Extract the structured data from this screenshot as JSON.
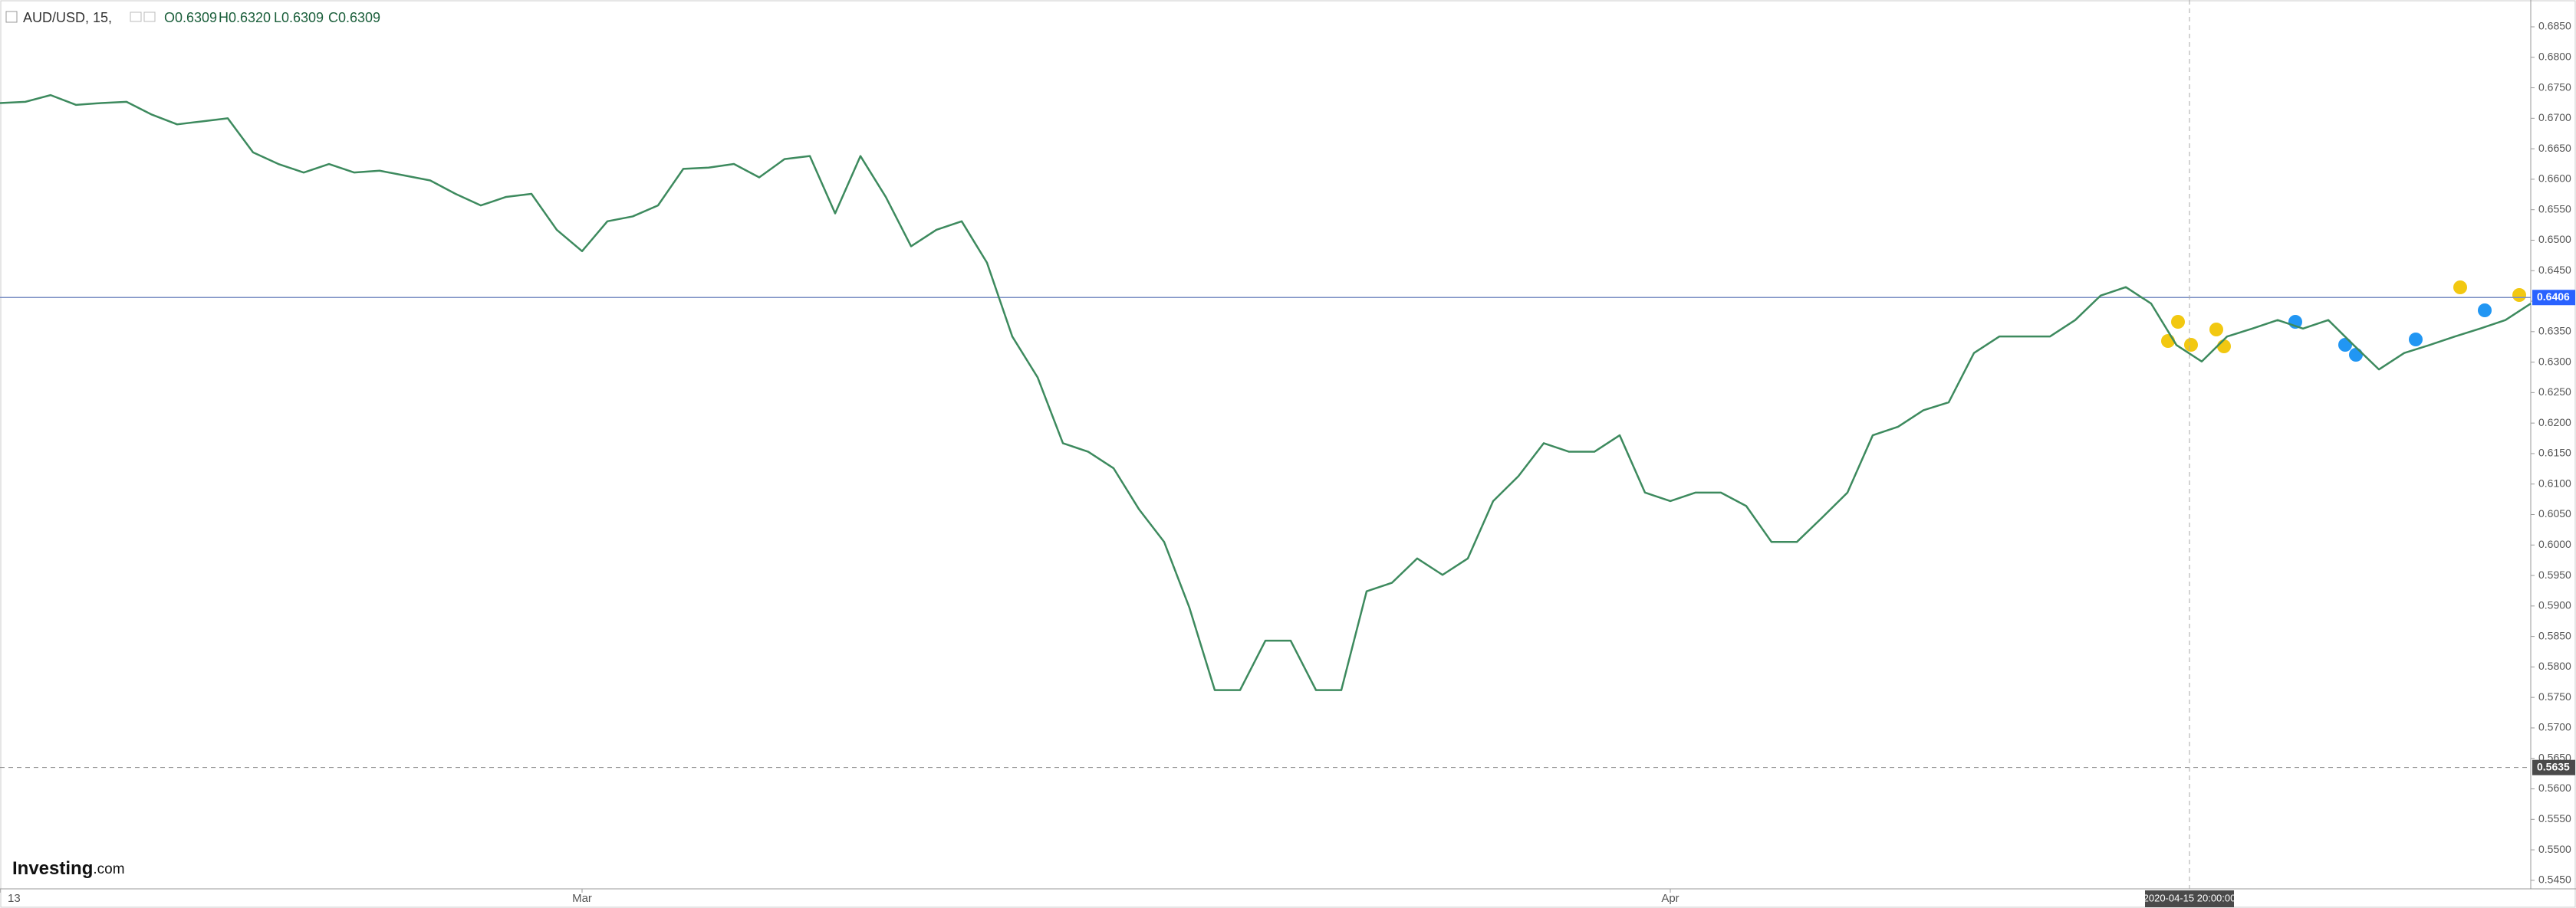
{
  "header": {
    "symbol": "AUD/USD, 15,",
    "open": "O0.6309",
    "high": "H0.6320",
    "low": "L0.6309",
    "close": "C0.6309"
  },
  "logo": {
    "name": "Investing",
    "suffix": ".com"
  },
  "chart_data": {
    "type": "line",
    "color": "#3d8a5e",
    "categories": [
      "13",
      null,
      null,
      null,
      null,
      null,
      null,
      null,
      null,
      null,
      null,
      null,
      null,
      null,
      null,
      null,
      null,
      null,
      null,
      null,
      null,
      null,
      null,
      "Mar",
      null,
      null,
      null,
      null,
      null,
      null,
      null,
      null,
      null,
      null,
      null,
      null,
      null,
      null,
      null,
      null,
      null,
      null,
      null,
      null,
      null,
      null,
      null,
      null,
      null,
      null,
      null,
      null,
      null,
      null,
      null,
      null,
      null,
      null,
      null,
      null,
      null,
      null,
      null,
      null,
      null,
      null,
      "Apr",
      null,
      null,
      null,
      null,
      null,
      null,
      null,
      null,
      null,
      null,
      null,
      null,
      null,
      null,
      null,
      null,
      null,
      null,
      null,
      null,
      null,
      null,
      null,
      null,
      null,
      null,
      null,
      null,
      null,
      null,
      null,
      null,
      null,
      null
    ],
    "values": [
      0.6725,
      0.6727,
      0.6738,
      0.6722,
      0.6725,
      0.6727,
      0.6706,
      0.669,
      0.6695,
      0.67,
      0.6644,
      0.6625,
      0.6611,
      0.6625,
      0.6611,
      0.6614,
      0.6606,
      0.6598,
      0.6576,
      0.6557,
      0.6571,
      0.6576,
      0.6517,
      0.6482,
      0.6531,
      0.6539,
      0.6557,
      0.6617,
      0.6619,
      0.6625,
      0.6603,
      0.6633,
      0.6638,
      0.6544,
      0.6638,
      0.6571,
      0.649,
      0.6517,
      0.6531,
      0.6463,
      0.6342,
      0.6275,
      0.6167,
      0.6153,
      0.6126,
      0.6059,
      0.6005,
      0.5897,
      0.5762,
      0.5762,
      0.5843,
      0.5843,
      0.5762,
      0.5762,
      0.5924,
      0.5938,
      0.5978,
      0.5951,
      0.5978,
      0.6072,
      0.6113,
      0.6167,
      0.6153,
      0.6153,
      0.618,
      0.6086,
      0.6072,
      0.6086,
      0.6086,
      0.6064,
      0.6005,
      0.6005,
      0.6045,
      0.6086,
      0.618,
      0.6194,
      0.6221,
      0.6234,
      0.6315,
      0.6342,
      0.6342,
      0.6342,
      0.6369,
      0.6409,
      0.6423,
      0.6396,
      0.6328,
      0.6301,
      0.6342,
      0.6355,
      0.6369,
      0.6355,
      0.6369,
      0.6328,
      0.6288,
      0.6315,
      0.6328,
      0.6342,
      0.6355,
      0.6369,
      0.6396
    ],
    "ylim": [
      0.5436,
      0.6894
    ],
    "yticks": [
      {
        "value": 0.545,
        "label": "0.5450"
      },
      {
        "value": 0.55,
        "label": "0.5500"
      },
      {
        "value": 0.555,
        "label": "0.5550"
      },
      {
        "value": 0.56,
        "label": "0.5600"
      },
      {
        "value": 0.565,
        "label": "0.5650"
      },
      {
        "value": 0.57,
        "label": "0.5700"
      },
      {
        "value": 0.575,
        "label": "0.5750"
      },
      {
        "value": 0.58,
        "label": "0.5800"
      },
      {
        "value": 0.585,
        "label": "0.5850"
      },
      {
        "value": 0.59,
        "label": "0.5900"
      },
      {
        "value": 0.595,
        "label": "0.5950"
      },
      {
        "value": 0.6,
        "label": "0.6000"
      },
      {
        "value": 0.605,
        "label": "0.6050"
      },
      {
        "value": 0.61,
        "label": "0.6100"
      },
      {
        "value": 0.615,
        "label": "0.6150"
      },
      {
        "value": 0.62,
        "label": "0.6200"
      },
      {
        "value": 0.625,
        "label": "0.6250"
      },
      {
        "value": 0.63,
        "label": "0.6300"
      },
      {
        "value": 0.635,
        "label": "0.6350"
      },
      {
        "value": 0.64,
        "label": "0.6400"
      },
      {
        "value": 0.645,
        "label": "0.6450"
      },
      {
        "value": 0.65,
        "label": "0.6500"
      },
      {
        "value": 0.655,
        "label": "0.6550"
      },
      {
        "value": 0.66,
        "label": "0.6600"
      },
      {
        "value": 0.665,
        "label": "0.6650"
      },
      {
        "value": 0.67,
        "label": "0.6700"
      },
      {
        "value": 0.675,
        "label": "0.6750"
      },
      {
        "value": 0.68,
        "label": "0.6800"
      },
      {
        "value": 0.685,
        "label": "0.6850"
      }
    ],
    "last_price": 0.6406,
    "crosshair": {
      "price": 0.5635,
      "time": "2020-04-15 20:00:00"
    },
    "grid": false
  }
}
